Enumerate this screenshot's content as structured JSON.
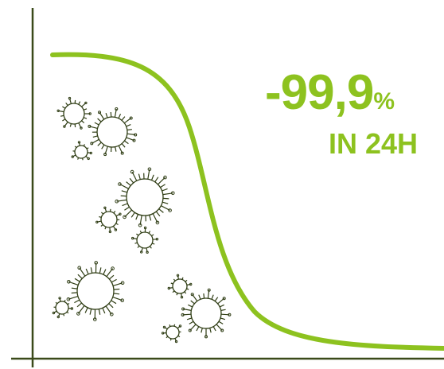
{
  "headline": {
    "value": "-99,9",
    "unit": "%",
    "period": "IN 24H"
  },
  "colors": {
    "accent": "#8dc21f",
    "axis": "#3b4a1a",
    "germ": "#2f3d14"
  },
  "icons": {
    "germ": "germ-icon"
  },
  "curve": {
    "shape": "sigmoid-decline",
    "start_level": 1.0,
    "end_level": 0.001
  },
  "germ_count": 12
}
